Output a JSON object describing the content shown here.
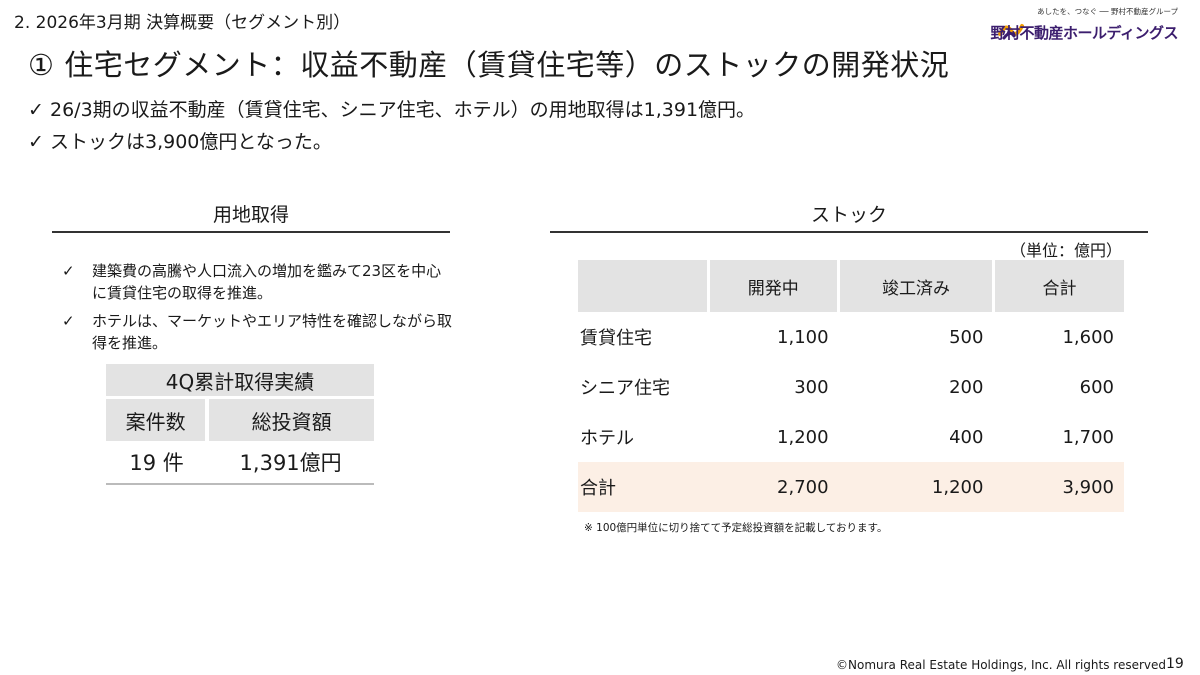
{
  "header": {
    "section_label": "2.  2026年3月期 決算概要（セグメント別）",
    "title": "① 住宅セグメント：収益不動産（賃貸住宅等）のストックの開発状況"
  },
  "logo": {
    "tagline": "あしたを、つなぐ ── 野村不動産グループ",
    "name": "野村不動産ホールディングス",
    "mark_color": "#f5a000",
    "brand_color": "#3c1e6e"
  },
  "summary": [
    {
      "check": "✓",
      "text": "26/3期の収益不動産（賃貸住宅、シニア住宅、ホテル）の用地取得は1,391億円。"
    },
    {
      "check": "✓",
      "text": "ストックは3,900億円となった。"
    }
  ],
  "acquisition": {
    "heading": "用地取得",
    "notes": [
      {
        "mark": "✓",
        "text": "建築費の高騰や人口流入の増加を鑑みて23区を中心に賃貸住宅の取得を推進。"
      },
      {
        "mark": "✓",
        "text": "ホテルは、マーケットやエリア特性を確認しながら取得を推進。"
      }
    ],
    "table": {
      "title": "4Q累計取得実績",
      "headers": [
        "案件数",
        "総投資額"
      ],
      "values": [
        "19 件",
        "1,391億円"
      ]
    }
  },
  "stock": {
    "heading": "ストック",
    "unit": "（単位：億円）",
    "columns": [
      "",
      "開発中",
      "竣工済み",
      "合計"
    ],
    "rows": [
      {
        "label": "賃貸住宅",
        "values": [
          "1,100",
          "500",
          "1,600"
        ]
      },
      {
        "label": "シニア住宅",
        "values": [
          "300",
          "200",
          "600"
        ]
      },
      {
        "label": "ホテル",
        "values": [
          "1,200",
          "400",
          "1,700"
        ]
      },
      {
        "label": "合計",
        "values": [
          "2,700",
          "1,200",
          "3,900"
        ]
      }
    ],
    "footnote": "※ 100億円単位に切り捨てて予定総投資額を記載しております。",
    "total_row_color": "#fcefe5"
  },
  "footer": {
    "copyright": "©Nomura Real Estate Holdings, Inc. All rights reserved",
    "page_number": "19"
  }
}
